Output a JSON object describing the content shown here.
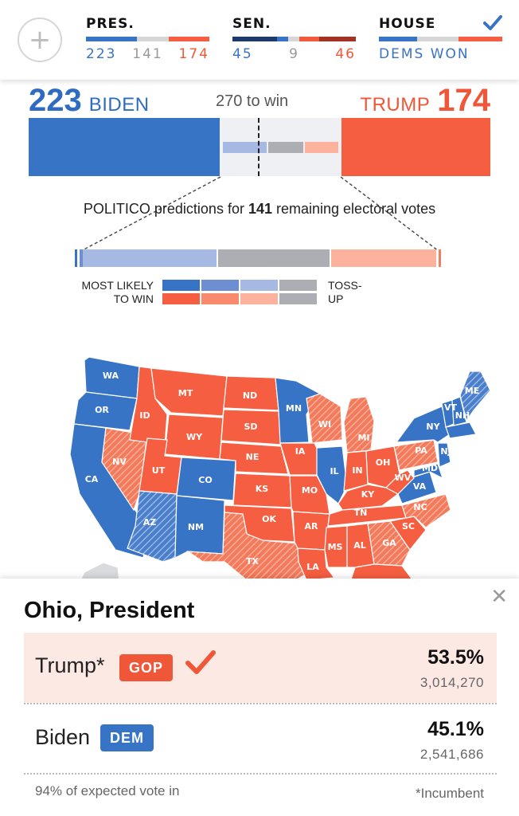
{
  "topbar": {
    "add_label": "+",
    "pres": {
      "title": "PRES.",
      "dem": "223",
      "toss": "141",
      "rep": "174"
    },
    "sen": {
      "title": "SEN.",
      "dem": "45",
      "toss": "9",
      "rep": "46"
    },
    "house": {
      "title": "HOUSE",
      "status": "DEMS WON",
      "check_icon": "check-icon"
    }
  },
  "electoral": {
    "dem_votes": "223",
    "dem_name": "BIDEN",
    "threshold": "270 to win",
    "rep_votes": "174",
    "rep_name": "TRUMP",
    "dem_fraction": 0.414,
    "rep_fraction": 0.323
  },
  "predictions": {
    "text_pre": "POLITICO predictions for ",
    "remaining": "141",
    "text_post": " remaining electoral votes",
    "legend_left_1": "MOST LIKELY",
    "legend_left_2": "TO WIN",
    "legend_right_1": "TOSS-",
    "legend_right_2": "UP"
  },
  "colors": {
    "dem": "#3874c6",
    "rep": "#f55e40",
    "lean_dem": "#a6b9e3",
    "lean_rep": "#fdb29d",
    "toss": "#acaeb4"
  },
  "map": {
    "states": [
      "WA",
      "OR",
      "CA",
      "NV",
      "ID",
      "MT",
      "WY",
      "UT",
      "AZ",
      "CO",
      "NM",
      "ND",
      "SD",
      "NE",
      "KS",
      "OK",
      "TX",
      "MN",
      "IA",
      "MO",
      "AR",
      "LA",
      "WI",
      "IL",
      "MI",
      "IN",
      "OH",
      "KY",
      "TN",
      "MS",
      "AL",
      "GA",
      "SC",
      "NC",
      "VA",
      "WV",
      "PA",
      "NY",
      "VT",
      "NH",
      "ME",
      "NJ",
      "MD"
    ]
  },
  "detail": {
    "title": "Ohio, President",
    "close_icon": "close-icon",
    "candidates": [
      {
        "name": "Trump*",
        "party": "GOP",
        "pct": "53.5%",
        "votes": "3,014,270",
        "winner": true
      },
      {
        "name": "Biden",
        "party": "DEM",
        "pct": "45.1%",
        "votes": "2,541,686",
        "winner": false
      }
    ],
    "reporting": "94% of expected vote in",
    "footnote": "*Incumbent"
  }
}
